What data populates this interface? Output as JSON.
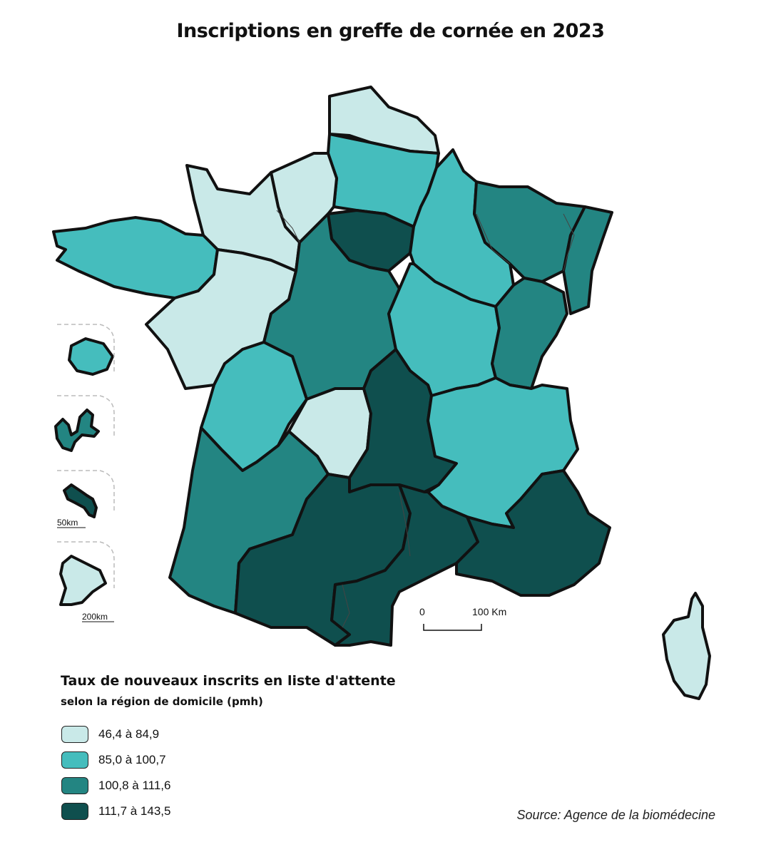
{
  "title": "Inscriptions en greffe de cornée en 2023",
  "legend": {
    "title": "Taux de nouveaux inscrits en liste d'attente",
    "subtitle": "selon la région de domicile (pmh)",
    "classes": [
      {
        "label": "46,4 à 84,9",
        "color": "#c9e9e8"
      },
      {
        "label": "85,0 à 100,7",
        "color": "#45bdbd"
      },
      {
        "label": "100,8 à 111,6",
        "color": "#238582"
      },
      {
        "label": "111,7 à 143,5",
        "color": "#0f4f4e"
      }
    ]
  },
  "scale_bar": {
    "start": "0",
    "end": "100 Km"
  },
  "insets": {
    "scale_small": "50km",
    "scale_large": "200km"
  },
  "source": "Source: Agence de la biomédecine",
  "regions": [
    {
      "id": "nord-pas-de-calais",
      "class": 0
    },
    {
      "id": "picardie",
      "class": 1
    },
    {
      "id": "haute-normandie",
      "class": 0
    },
    {
      "id": "basse-normandie",
      "class": 0
    },
    {
      "id": "bretagne",
      "class": 1
    },
    {
      "id": "pays-de-la-loire",
      "class": 0
    },
    {
      "id": "ile-de-france",
      "class": 3
    },
    {
      "id": "centre",
      "class": 2
    },
    {
      "id": "champagne-ardenne",
      "class": 1
    },
    {
      "id": "lorraine",
      "class": 2
    },
    {
      "id": "alsace",
      "class": 2
    },
    {
      "id": "bourgogne",
      "class": 1
    },
    {
      "id": "franche-comte",
      "class": 2
    },
    {
      "id": "poitou-charentes",
      "class": 1
    },
    {
      "id": "limousin",
      "class": 0
    },
    {
      "id": "auvergne",
      "class": 3
    },
    {
      "id": "rhone-alpes",
      "class": 1
    },
    {
      "id": "aquitaine",
      "class": 2
    },
    {
      "id": "midi-pyrenees",
      "class": 3
    },
    {
      "id": "languedoc-roussillon",
      "class": 3
    },
    {
      "id": "paca",
      "class": 3
    },
    {
      "id": "corse",
      "class": 0
    },
    {
      "id": "reunion",
      "class": 1
    },
    {
      "id": "guadeloupe",
      "class": 2
    },
    {
      "id": "martinique",
      "class": 3
    },
    {
      "id": "guyane",
      "class": 0
    }
  ]
}
